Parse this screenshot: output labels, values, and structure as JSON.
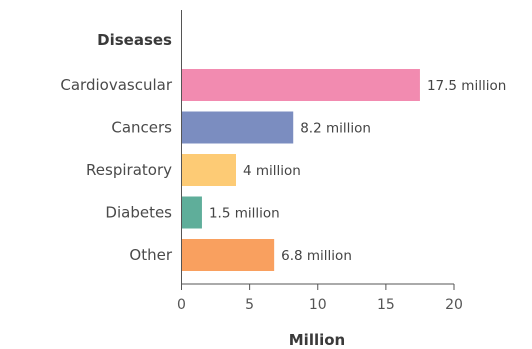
{
  "chart_data": {
    "type": "bar",
    "orientation": "horizontal",
    "category_header": "Diseases",
    "xlabel": "Million",
    "categories": [
      "Cardiovascular",
      "Cancers",
      "Respiratory",
      "Diabetes",
      "Other"
    ],
    "values": [
      17.5,
      8.2,
      4,
      1.5,
      6.8
    ],
    "value_labels": [
      "17.5 million",
      "8.2 million",
      "4 million",
      "1.5 million",
      "6.8 million"
    ],
    "colors": [
      "#f28bb0",
      "#7b8dc0",
      "#fdcb75",
      "#5fae9a",
      "#f9a05f"
    ],
    "xlim": [
      0,
      20
    ],
    "xticks": [
      0,
      5,
      10,
      15,
      20
    ],
    "xtick_labels": [
      "0",
      "5",
      "10",
      "15",
      "20"
    ],
    "grid": false
  }
}
